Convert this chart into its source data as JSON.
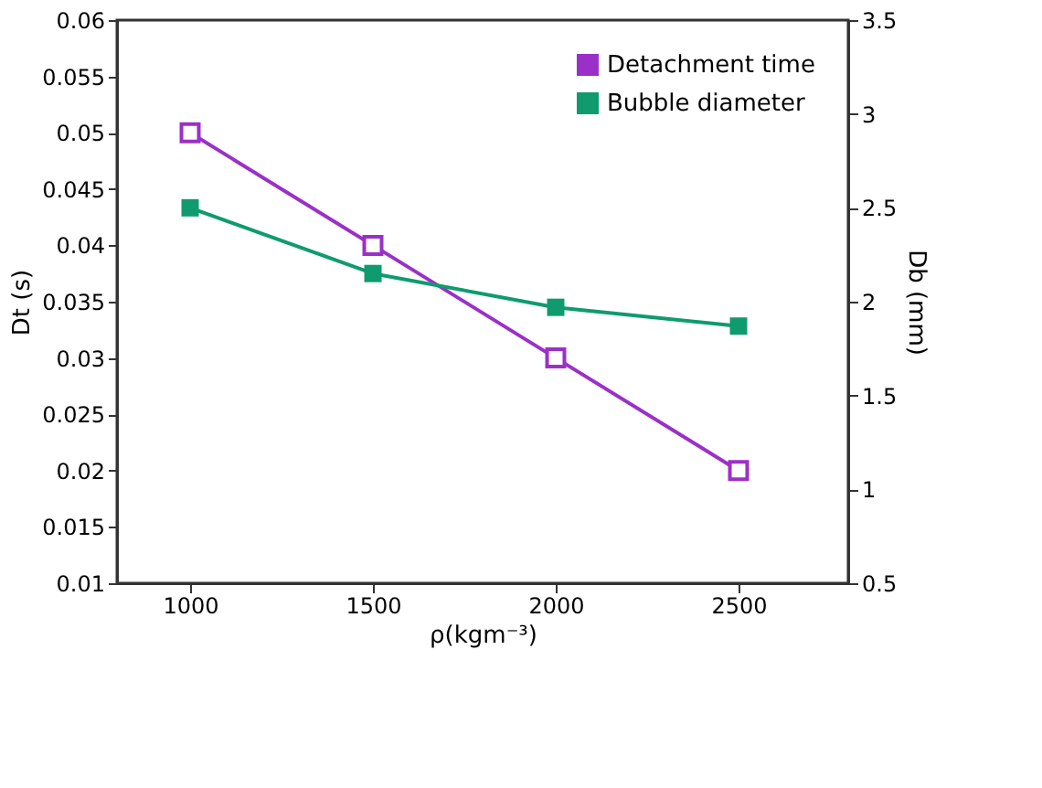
{
  "chart_data": {
    "type": "line",
    "xlabel": "ρ(kgm⁻³)",
    "ylabel": "Dt (s)",
    "y2label": "Db (mm)",
    "x": [
      1000,
      1500,
      2000,
      2500
    ],
    "series": [
      {
        "name": "Detachment time",
        "color": "#9b30c8",
        "values": [
          0.05,
          0.04,
          0.03,
          0.02
        ]
      },
      {
        "name": "Bubble diameter",
        "color": "#0f9b6e",
        "values": [
          2.5,
          2.15,
          1.97,
          1.87
        ],
        "axis": "y2"
      }
    ],
    "xlim": [
      800,
      2800
    ],
    "xticks": [
      1000,
      1500,
      2000,
      2500
    ],
    "ylim": [
      0.01,
      0.06
    ],
    "yticks": [
      0.01,
      0.015,
      0.02,
      0.025,
      0.03,
      0.035,
      0.04,
      0.045,
      0.05,
      0.055,
      0.06
    ],
    "y2lim": [
      0.5,
      3.5
    ],
    "y2ticks": [
      0.5,
      1,
      1.5,
      2,
      2.5,
      3,
      3.5
    ],
    "grid": false,
    "legend": "top right",
    "marker": "square",
    "line_style": "solid"
  }
}
